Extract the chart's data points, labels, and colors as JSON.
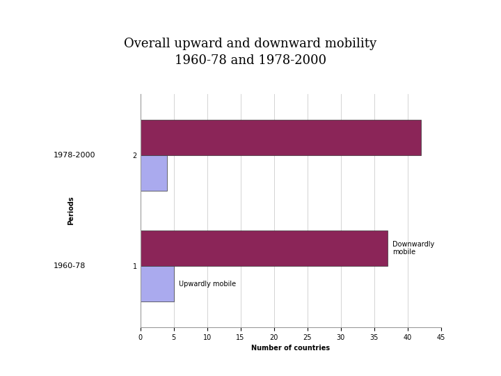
{
  "title": "Overall upward and downward mobility\n1960-78 and 1978-2000",
  "title_fontsize": 13,
  "xlabel": "Number of countries",
  "ylabel": "Periods",
  "xlim": [
    0,
    45
  ],
  "xticks": [
    0,
    5,
    10,
    15,
    20,
    25,
    30,
    35,
    40,
    45
  ],
  "periods": [
    "1978-2000",
    "1960-78"
  ],
  "ytick_labels": [
    "2",
    "1"
  ],
  "downwardly_mobile": [
    42,
    37
  ],
  "upwardly_mobile": [
    4,
    5
  ],
  "color_downward": "#8B2558",
  "color_upward": "#AAAAEE",
  "legend_downward": "Downwardly\nmobile",
  "legend_upward": "Upwardly mobile",
  "bar_height": 0.32,
  "background_color": "#FFFFFF",
  "plot_background": "#FFFFFF",
  "grid_color": "#CCCCCC"
}
